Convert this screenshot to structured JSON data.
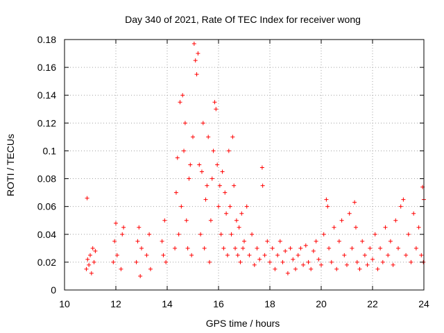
{
  "chart_data": {
    "type": "scatter",
    "title": "Day 340 of 2021, Rate Of TEC Index for receiver wong",
    "xlabel": "GPS time / hours",
    "ylabel": "ROTI / TECUs",
    "xlim": [
      10,
      24
    ],
    "ylim": [
      0,
      0.18
    ],
    "x_ticks": [
      "10",
      "12",
      "14",
      "16",
      "18",
      "20",
      "22",
      "24"
    ],
    "y_ticks": [
      "0",
      "0.02",
      "0.04",
      "0.06",
      "0.08",
      "0.1",
      "0.12",
      "0.14",
      "0.16",
      "0.18"
    ],
    "x_tick_values": [
      10,
      12,
      14,
      16,
      18,
      20,
      22,
      24
    ],
    "y_tick_values": [
      0,
      0.02,
      0.04,
      0.06,
      0.08,
      0.1,
      0.12,
      0.14,
      0.16,
      0.18
    ],
    "grid": true,
    "marker": "+",
    "series": [
      {
        "name": "ROTI",
        "color": "#ff0000",
        "points": [
          [
            10.85,
            0.015
          ],
          [
            10.9,
            0.022
          ],
          [
            10.95,
            0.018
          ],
          [
            11.0,
            0.025
          ],
          [
            11.05,
            0.012
          ],
          [
            11.1,
            0.03
          ],
          [
            11.15,
            0.02
          ],
          [
            11.2,
            0.028
          ],
          [
            10.88,
            0.066
          ],
          [
            11.9,
            0.02
          ],
          [
            11.95,
            0.035
          ],
          [
            12.0,
            0.048
          ],
          [
            12.05,
            0.025
          ],
          [
            12.2,
            0.015
          ],
          [
            12.25,
            0.04
          ],
          [
            12.3,
            0.045
          ],
          [
            12.8,
            0.02
          ],
          [
            12.85,
            0.035
          ],
          [
            12.9,
            0.045
          ],
          [
            12.95,
            0.01
          ],
          [
            13.0,
            0.03
          ],
          [
            13.2,
            0.025
          ],
          [
            13.3,
            0.04
          ],
          [
            13.35,
            0.015
          ],
          [
            13.8,
            0.035
          ],
          [
            13.85,
            0.025
          ],
          [
            13.9,
            0.05
          ],
          [
            13.95,
            0.02
          ],
          [
            14.3,
            0.03
          ],
          [
            14.35,
            0.07
          ],
          [
            14.4,
            0.095
          ],
          [
            14.45,
            0.04
          ],
          [
            14.5,
            0.135
          ],
          [
            14.55,
            0.06
          ],
          [
            14.6,
            0.14
          ],
          [
            14.65,
            0.1
          ],
          [
            14.7,
            0.12
          ],
          [
            14.75,
            0.05
          ],
          [
            14.8,
            0.03
          ],
          [
            14.85,
            0.08
          ],
          [
            14.9,
            0.09
          ],
          [
            14.95,
            0.025
          ],
          [
            15.0,
            0.11
          ],
          [
            15.05,
            0.177
          ],
          [
            15.1,
            0.165
          ],
          [
            15.15,
            0.155
          ],
          [
            15.2,
            0.17
          ],
          [
            15.25,
            0.09
          ],
          [
            15.3,
            0.04
          ],
          [
            15.35,
            0.085
          ],
          [
            15.4,
            0.12
          ],
          [
            15.45,
            0.03
          ],
          [
            15.5,
            0.065
          ],
          [
            15.55,
            0.075
          ],
          [
            15.6,
            0.11
          ],
          [
            15.65,
            0.02
          ],
          [
            15.7,
            0.05
          ],
          [
            15.75,
            0.08
          ],
          [
            15.8,
            0.1
          ],
          [
            15.85,
            0.135
          ],
          [
            15.9,
            0.13
          ],
          [
            15.95,
            0.09
          ],
          [
            16.0,
            0.06
          ],
          [
            16.05,
            0.075
          ],
          [
            16.1,
            0.04
          ],
          [
            16.15,
            0.085
          ],
          [
            16.2,
            0.03
          ],
          [
            16.25,
            0.07
          ],
          [
            16.3,
            0.055
          ],
          [
            16.35,
            0.025
          ],
          [
            16.4,
            0.1
          ],
          [
            16.45,
            0.06
          ],
          [
            16.5,
            0.04
          ],
          [
            16.55,
            0.11
          ],
          [
            16.6,
            0.075
          ],
          [
            16.65,
            0.03
          ],
          [
            16.7,
            0.05
          ],
          [
            16.75,
            0.025
          ],
          [
            16.8,
            0.045
          ],
          [
            16.85,
            0.02
          ],
          [
            16.9,
            0.055
          ],
          [
            16.95,
            0.03
          ],
          [
            17.0,
            0.035
          ],
          [
            17.1,
            0.06
          ],
          [
            17.2,
            0.025
          ],
          [
            17.3,
            0.04
          ],
          [
            17.4,
            0.018
          ],
          [
            17.5,
            0.03
          ],
          [
            17.6,
            0.022
          ],
          [
            17.7,
            0.088
          ],
          [
            17.72,
            0.075
          ],
          [
            17.8,
            0.025
          ],
          [
            17.9,
            0.035
          ],
          [
            18.0,
            0.02
          ],
          [
            18.1,
            0.03
          ],
          [
            18.2,
            0.015
          ],
          [
            18.3,
            0.025
          ],
          [
            18.4,
            0.035
          ],
          [
            18.5,
            0.02
          ],
          [
            18.6,
            0.028
          ],
          [
            18.7,
            0.012
          ],
          [
            18.8,
            0.03
          ],
          [
            18.9,
            0.022
          ],
          [
            19.0,
            0.015
          ],
          [
            19.1,
            0.025
          ],
          [
            19.2,
            0.03
          ],
          [
            19.3,
            0.018
          ],
          [
            19.4,
            0.032
          ],
          [
            19.5,
            0.02
          ],
          [
            19.6,
            0.015
          ],
          [
            19.7,
            0.028
          ],
          [
            19.8,
            0.035
          ],
          [
            19.9,
            0.022
          ],
          [
            20.0,
            0.018
          ],
          [
            20.1,
            0.04
          ],
          [
            20.2,
            0.065
          ],
          [
            20.25,
            0.06
          ],
          [
            20.3,
            0.03
          ],
          [
            20.4,
            0.02
          ],
          [
            20.5,
            0.045
          ],
          [
            20.6,
            0.015
          ],
          [
            20.7,
            0.035
          ],
          [
            20.8,
            0.05
          ],
          [
            20.9,
            0.025
          ],
          [
            21.0,
            0.018
          ],
          [
            21.1,
            0.055
          ],
          [
            21.2,
            0.03
          ],
          [
            21.3,
            0.063
          ],
          [
            21.35,
            0.045
          ],
          [
            21.4,
            0.02
          ],
          [
            21.5,
            0.015
          ],
          [
            21.6,
            0.035
          ],
          [
            21.7,
            0.025
          ],
          [
            21.8,
            0.018
          ],
          [
            21.9,
            0.03
          ],
          [
            22.0,
            0.022
          ],
          [
            22.1,
            0.04
          ],
          [
            22.2,
            0.015
          ],
          [
            22.3,
            0.03
          ],
          [
            22.4,
            0.02
          ],
          [
            22.5,
            0.045
          ],
          [
            22.6,
            0.025
          ],
          [
            22.7,
            0.035
          ],
          [
            22.8,
            0.018
          ],
          [
            22.9,
            0.05
          ],
          [
            23.0,
            0.03
          ],
          [
            23.1,
            0.06
          ],
          [
            23.2,
            0.065
          ],
          [
            23.3,
            0.025
          ],
          [
            23.4,
            0.04
          ],
          [
            23.5,
            0.02
          ],
          [
            23.6,
            0.055
          ],
          [
            23.7,
            0.03
          ],
          [
            23.8,
            0.045
          ],
          [
            23.9,
            0.025
          ],
          [
            23.95,
            0.074
          ],
          [
            24.0,
            0.065
          ],
          [
            23.98,
            0.02
          ]
        ]
      }
    ]
  }
}
